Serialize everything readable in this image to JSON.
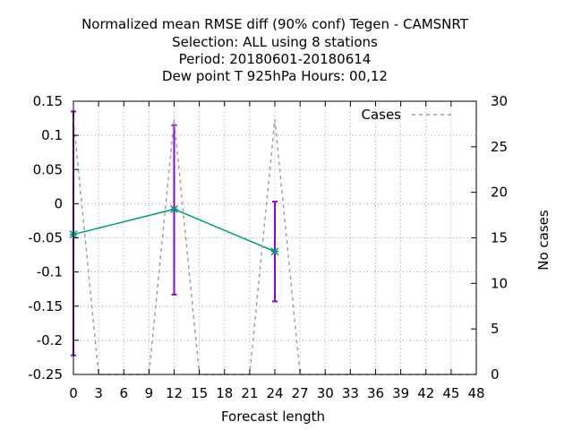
{
  "chart_data": {
    "type": "line",
    "title_lines": [
      "Normalized mean RMSE diff (90% conf) Tegen - CAMSNRT",
      "Selection: ALL using     8 stations",
      "Period: 20180601-20180614",
      "Dew point T 925hPa   Hours:  00,12"
    ],
    "xlabel": "Forecast length",
    "ylabel": "",
    "y2label": "No cases",
    "xlim": [
      0,
      48
    ],
    "ylim": [
      -0.25,
      0.15
    ],
    "y2lim": [
      0,
      30
    ],
    "xticks": [
      "0",
      "3",
      "6",
      "9",
      "12",
      "15",
      "18",
      "21",
      "24",
      "27",
      "30",
      "33",
      "36",
      "39",
      "42",
      "45",
      "48"
    ],
    "yticks": [
      "0.15",
      "0.1",
      "0.05",
      "0",
      "-0.05",
      "-0.1",
      "-0.15",
      "-0.2",
      "-0.25"
    ],
    "y2ticks": [
      "30",
      "25",
      "20",
      "15",
      "10",
      "5",
      "0"
    ],
    "grid": true,
    "legend_position": "top-right",
    "series": [
      {
        "name": "",
        "axis": "y",
        "color": "#009e73",
        "error_color": "#9400d3",
        "x": [
          0,
          12,
          24
        ],
        "y": [
          -0.045,
          -0.008,
          -0.07
        ],
        "err_low": [
          -0.222,
          -0.133,
          -0.143
        ],
        "err_high": [
          0.135,
          0.115,
          0.003
        ]
      },
      {
        "name": "Cases",
        "axis": "y2",
        "color": "#a0a0a0",
        "dashed": true,
        "x": [
          0,
          3,
          9,
          12,
          15,
          21,
          24,
          27,
          48
        ],
        "y": [
          28,
          0,
          0,
          28,
          0,
          0,
          28,
          0,
          0
        ]
      }
    ]
  }
}
